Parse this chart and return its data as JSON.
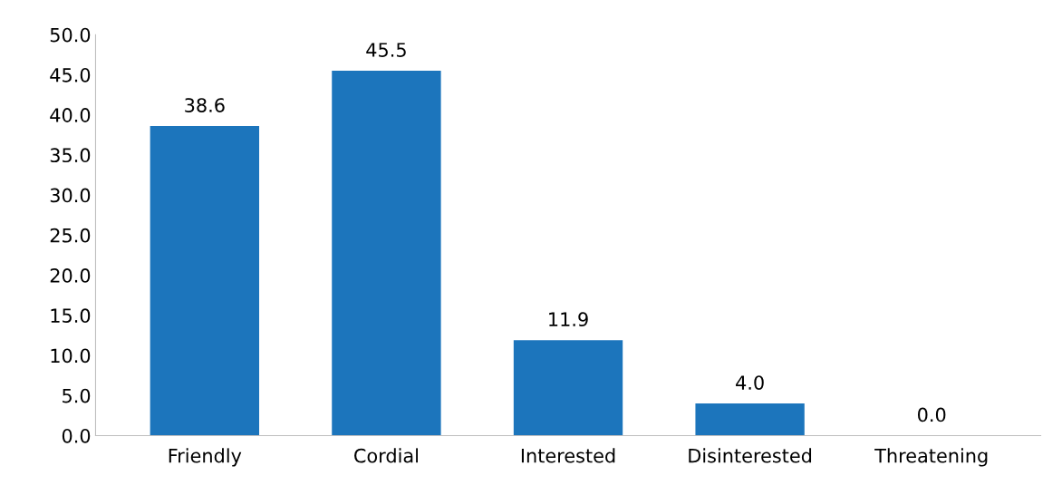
{
  "chart_data": {
    "type": "bar",
    "categories": [
      "Friendly",
      "Cordial",
      "Interested",
      "Disinterested",
      "Threatening"
    ],
    "values": [
      38.6,
      45.5,
      11.9,
      4.0,
      0.0
    ],
    "value_labels": [
      "38.6",
      "45.5",
      "11.9",
      "4.0",
      "0.0"
    ],
    "color": "#1c75bc",
    "ylim": [
      0,
      50
    ],
    "yticks": [
      {
        "value": 0,
        "label": "0.0"
      },
      {
        "value": 5,
        "label": "5.0"
      },
      {
        "value": 10,
        "label": "10.0"
      },
      {
        "value": 15,
        "label": "15.0"
      },
      {
        "value": 20,
        "label": "20.0"
      },
      {
        "value": 25,
        "label": "25.0"
      },
      {
        "value": 30,
        "label": "30.0"
      },
      {
        "value": 35,
        "label": "35.0"
      },
      {
        "value": 40,
        "label": "40.0"
      },
      {
        "value": 45,
        "label": "45.0"
      },
      {
        "value": 50,
        "label": "50.0"
      }
    ],
    "grid": false,
    "legend": false
  }
}
